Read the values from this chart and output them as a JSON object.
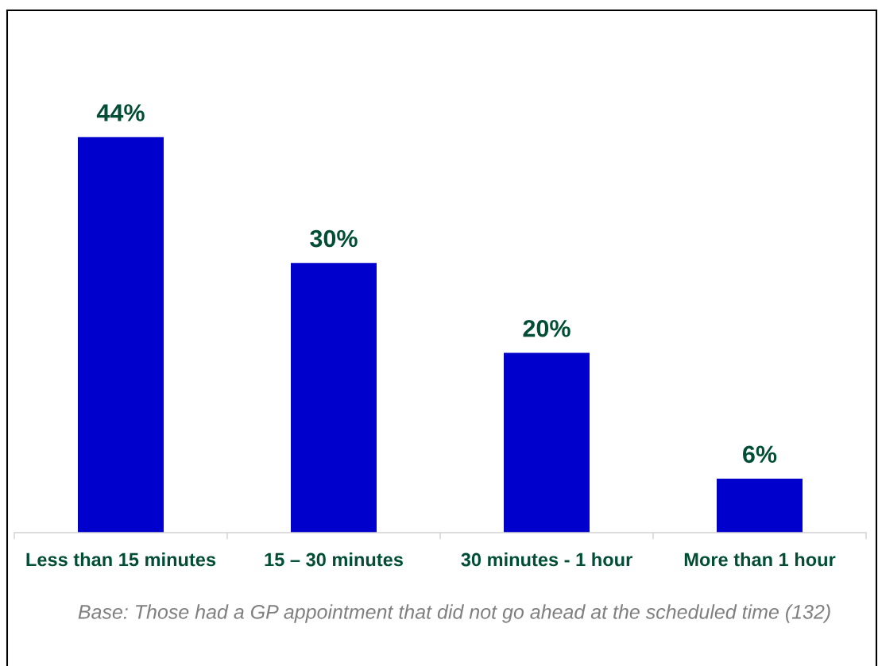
{
  "chart_data": {
    "type": "bar",
    "categories": [
      "Less than 15 minutes",
      "15 – 30 minutes",
      "30 minutes - 1 hour",
      "More than 1 hour"
    ],
    "values": [
      44,
      30,
      20,
      6
    ],
    "color": "#0000cc",
    "value_labels": [
      "44%",
      "30%",
      "20%",
      "6%"
    ],
    "tick_labels": "x",
    "annotations": [
      "Base: Those had a GP appointment that did not go ahead at the scheduled time (132)"
    ]
  }
}
